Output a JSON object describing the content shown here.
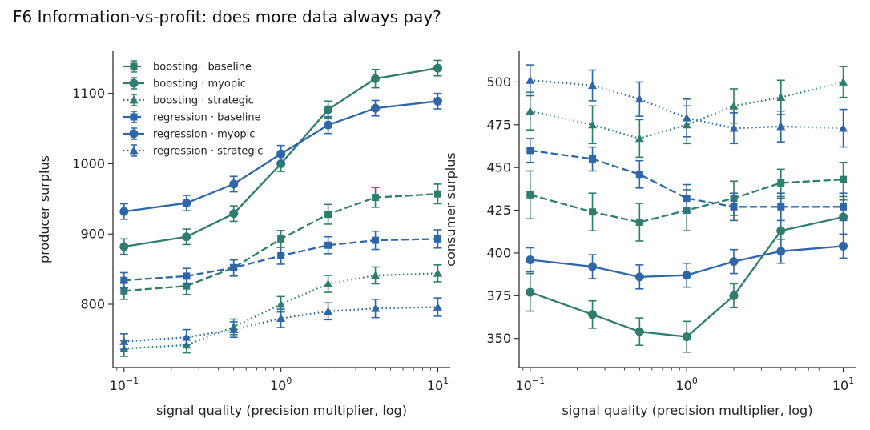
{
  "figure": {
    "title": "F6  Information-vs-profit: does more data always pay?"
  },
  "colors": {
    "boosting": "#2e7d6f",
    "regression": "#2f66a8",
    "axis": "#222222"
  },
  "chart_data": [
    {
      "type": "line",
      "title": "",
      "xlabel": "signal quality (precision multiplier, log)",
      "ylabel": "producer surplus",
      "xscale": "log",
      "x": [
        0.1,
        0.25,
        0.5,
        1,
        2,
        4,
        10
      ],
      "xlim": [
        0.085,
        12
      ],
      "ylim": [
        710,
        1160
      ],
      "xticks": [
        {
          "value": 0.1,
          "base": "10",
          "exp": "−1"
        },
        {
          "value": 1,
          "base": "10",
          "exp": "0"
        },
        {
          "value": 10,
          "base": "10",
          "exp": "1"
        }
      ],
      "yticks": [
        800,
        900,
        1000,
        1100
      ],
      "legend": {
        "placement": "top-left"
      },
      "grid": false,
      "series": [
        {
          "name": "boosting · baseline",
          "color": "#2e7d6f",
          "style": "dashed",
          "marker": "square",
          "values": [
            819,
            826,
            852,
            893,
            928,
            952,
            957
          ],
          "errors": [
            12,
            12,
            12,
            12,
            14,
            14,
            14
          ]
        },
        {
          "name": "boosting · myopic",
          "color": "#2e7d6f",
          "style": "solid",
          "marker": "circle",
          "values": [
            882,
            896,
            929,
            1000,
            1077,
            1121,
            1136
          ],
          "errors": [
            11,
            11,
            11,
            11,
            12,
            13,
            11
          ]
        },
        {
          "name": "boosting · strategic",
          "color": "#2e7d6f",
          "style": "dotted",
          "marker": "triangle",
          "values": [
            737,
            742,
            768,
            800,
            829,
            841,
            844
          ],
          "errors": [
            11,
            11,
            11,
            11,
            12,
            12,
            12
          ]
        },
        {
          "name": "regression · baseline",
          "color": "#2f66a8",
          "style": "dashed",
          "marker": "square",
          "values": [
            834,
            840,
            852,
            869,
            884,
            891,
            893
          ],
          "errors": [
            11,
            11,
            11,
            12,
            12,
            13,
            13
          ]
        },
        {
          "name": "regression · myopic",
          "color": "#2f66a8",
          "style": "solid",
          "marker": "circle",
          "values": [
            932,
            944,
            971,
            1014,
            1055,
            1079,
            1089
          ],
          "errors": [
            11,
            11,
            11,
            12,
            12,
            11,
            11
          ]
        },
        {
          "name": "regression · strategic",
          "color": "#2f66a8",
          "style": "dotted",
          "marker": "triangle",
          "values": [
            747,
            753,
            764,
            780,
            790,
            794,
            796
          ],
          "errors": [
            11,
            11,
            11,
            13,
            12,
            13,
            13
          ]
        }
      ]
    },
    {
      "type": "line",
      "title": "",
      "xlabel": "signal quality (precision multiplier, log)",
      "ylabel": "consumer surplus",
      "xscale": "log",
      "x": [
        0.1,
        0.25,
        0.5,
        1,
        2,
        4,
        10
      ],
      "xlim": [
        0.085,
        12
      ],
      "ylim": [
        333,
        518
      ],
      "xticks": [
        {
          "value": 0.1,
          "base": "10",
          "exp": "−1"
        },
        {
          "value": 1,
          "base": "10",
          "exp": "0"
        },
        {
          "value": 10,
          "base": "10",
          "exp": "1"
        }
      ],
      "yticks": [
        350,
        375,
        400,
        425,
        450,
        475,
        500
      ],
      "legend": {
        "placement": "none"
      },
      "grid": false,
      "series": [
        {
          "name": "boosting · baseline",
          "color": "#2e7d6f",
          "style": "dashed",
          "marker": "square",
          "values": [
            434,
            424,
            418,
            425,
            432,
            441,
            443
          ],
          "errors": [
            14,
            11,
            11,
            12,
            10,
            8,
            10
          ]
        },
        {
          "name": "boosting · myopic",
          "color": "#2e7d6f",
          "style": "solid",
          "marker": "circle",
          "values": [
            377,
            364,
            354,
            351,
            375,
            413,
            421
          ],
          "errors": [
            11,
            8,
            8,
            9,
            7,
            19,
            10
          ]
        },
        {
          "name": "boosting · strategic",
          "color": "#2e7d6f",
          "style": "dotted",
          "marker": "triangle",
          "values": [
            483,
            475,
            467,
            475,
            486,
            491,
            500
          ],
          "errors": [
            11,
            11,
            11,
            11,
            10,
            10,
            9
          ]
        },
        {
          "name": "regression · baseline",
          "color": "#2f66a8",
          "style": "dashed",
          "marker": "square",
          "values": [
            460,
            455,
            446,
            432,
            427,
            427,
            427
          ],
          "errors": [
            7,
            7,
            8,
            8,
            8,
            8,
            8
          ]
        },
        {
          "name": "regression · myopic",
          "color": "#2f66a8",
          "style": "solid",
          "marker": "circle",
          "values": [
            396,
            392,
            386,
            387,
            395,
            401,
            404
          ],
          "errors": [
            7,
            7,
            7,
            7,
            7,
            7,
            7
          ]
        },
        {
          "name": "regression · strategic",
          "color": "#2f66a8",
          "style": "dotted",
          "marker": "triangle",
          "values": [
            501,
            498,
            490,
            479,
            473,
            474,
            473
          ],
          "errors": [
            9,
            9,
            10,
            11,
            9,
            9,
            11
          ]
        }
      ]
    }
  ]
}
